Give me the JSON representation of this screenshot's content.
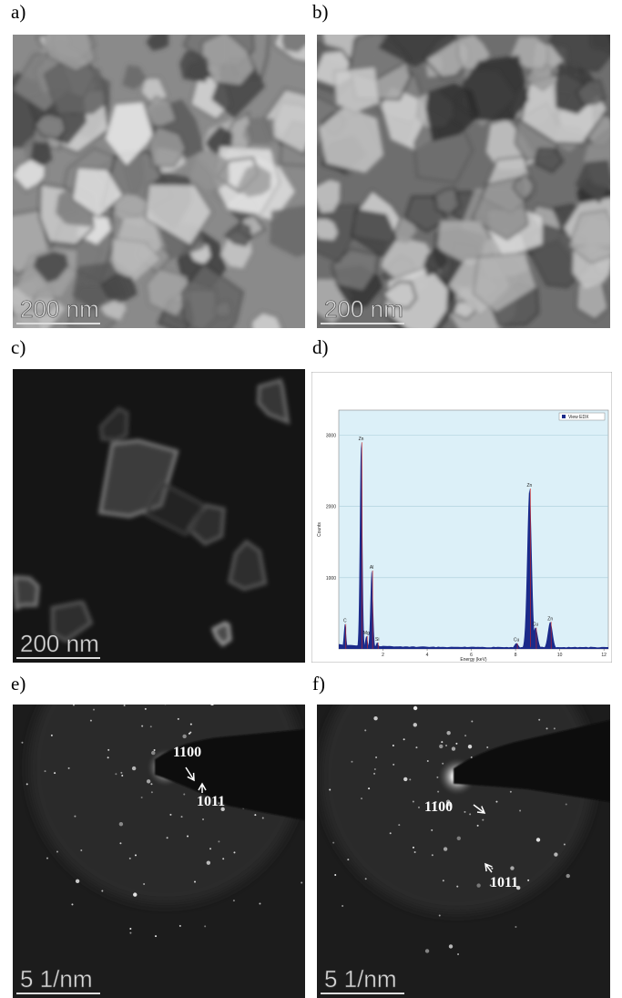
{
  "panels": [
    {
      "label": "a)",
      "scale_bar": "200 nm"
    },
    {
      "label": "b)",
      "scale_bar": "200 nm"
    },
    {
      "label": "c)",
      "scale_bar": "200 nm"
    },
    {
      "label": "d)",
      "spectrum": {
        "legend": "View EDX",
        "xlabel": "Energy (keV)",
        "ylabel": "Counts",
        "xlim": [
          0,
          12.2
        ],
        "ylim": [
          0,
          3350
        ],
        "xticks": [
          2,
          4,
          6,
          8,
          10,
          12
        ],
        "yticks": [
          1000,
          2000,
          3000
        ],
        "peaks": [
          {
            "label": "C",
            "energy": 0.28,
            "counts": 350
          },
          {
            "label": "Zn",
            "energy": 1.01,
            "counts": 2900
          },
          {
            "label": "Mg",
            "energy": 1.25,
            "counts": 180
          },
          {
            "label": "Al",
            "energy": 1.49,
            "counts": 1100
          },
          {
            "label": "Si",
            "energy": 1.74,
            "counts": 90
          },
          {
            "label": "Cu",
            "energy": 8.04,
            "counts": 80
          },
          {
            "label": "Zn",
            "energy": 8.63,
            "counts": 2250
          },
          {
            "label": "Cu",
            "energy": 8.9,
            "counts": 300
          },
          {
            "label": "Zn",
            "energy": 9.57,
            "counts": 380
          }
        ]
      }
    },
    {
      "label": "e)",
      "scale_bar": "5 1/nm",
      "annotations": [
        "1100",
        "1011"
      ]
    },
    {
      "label": "f)",
      "scale_bar": "5 1/nm",
      "annotations": [
        "1100",
        "1011"
      ]
    }
  ]
}
